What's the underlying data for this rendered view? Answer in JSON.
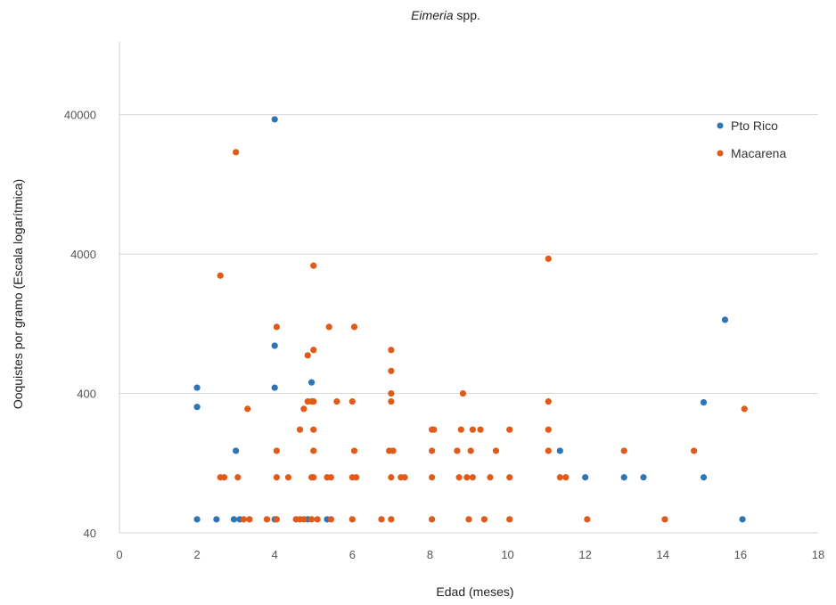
{
  "chart_data": {
    "type": "scatter",
    "title_italic": "Eimeria",
    "title_rest": " spp.",
    "xlabel": "Edad (meses)",
    "ylabel": "Ooquistes por gramo (Escala logarítmica)",
    "xlim": [
      0,
      18
    ],
    "x_ticks": [
      0,
      2,
      4,
      6,
      8,
      10,
      12,
      14,
      16,
      18
    ],
    "y_scale": "log",
    "ylim": [
      40,
      133000
    ],
    "y_ticks": [
      40,
      400,
      4000,
      40000
    ],
    "grid": "horizontal",
    "legend_position": "top-right",
    "series": [
      {
        "name": "Pto Rico",
        "color": "#2E75B6",
        "points": [
          [
            2,
            50
          ],
          [
            2.5,
            50
          ],
          [
            2.95,
            50
          ],
          [
            3.1,
            50
          ],
          [
            4,
            50
          ],
          [
            4.85,
            50
          ],
          [
            5.35,
            50
          ],
          [
            2,
            320
          ],
          [
            2,
            440
          ],
          [
            3,
            155
          ],
          [
            4,
            440
          ],
          [
            4,
            880
          ],
          [
            4.95,
            480
          ],
          [
            4,
            37000
          ],
          [
            11.35,
            155
          ],
          [
            12,
            100
          ],
          [
            13,
            100
          ],
          [
            13.5,
            100
          ],
          [
            15.05,
            100
          ],
          [
            15.05,
            345
          ],
          [
            15.6,
            1350
          ],
          [
            16.05,
            50
          ]
        ]
      },
      {
        "name": "Macarena",
        "color": "#E05A1A",
        "points": [
          [
            2.6,
            100
          ],
          [
            2.7,
            100
          ],
          [
            3.05,
            100
          ],
          [
            3.2,
            50
          ],
          [
            3.35,
            50
          ],
          [
            3.3,
            310
          ],
          [
            3,
            21500
          ],
          [
            2.6,
            2800
          ],
          [
            3.8,
            50
          ],
          [
            4.05,
            50
          ],
          [
            4.05,
            100
          ],
          [
            4.05,
            155
          ],
          [
            4.05,
            1200
          ],
          [
            4.35,
            100
          ],
          [
            4.55,
            50
          ],
          [
            4.65,
            50
          ],
          [
            4.75,
            50
          ],
          [
            4.95,
            50
          ],
          [
            4.65,
            220
          ],
          [
            4.75,
            310
          ],
          [
            4.85,
            750
          ],
          [
            4.85,
            350
          ],
          [
            4.95,
            350
          ],
          [
            4.95,
            100
          ],
          [
            5,
            100
          ],
          [
            5,
            155
          ],
          [
            5,
            220
          ],
          [
            5,
            350
          ],
          [
            5,
            820
          ],
          [
            5,
            3300
          ],
          [
            5.1,
            50
          ],
          [
            5.35,
            100
          ],
          [
            5.45,
            100
          ],
          [
            5.45,
            50
          ],
          [
            5.4,
            1200
          ],
          [
            5.6,
            350
          ],
          [
            6,
            50
          ],
          [
            6,
            100
          ],
          [
            6.1,
            100
          ],
          [
            6.05,
            155
          ],
          [
            6,
            350
          ],
          [
            6.05,
            1200
          ],
          [
            6.75,
            50
          ],
          [
            6.95,
            155
          ],
          [
            7.05,
            155
          ],
          [
            7,
            50
          ],
          [
            7,
            100
          ],
          [
            7,
            350
          ],
          [
            7,
            400
          ],
          [
            7,
            580
          ],
          [
            7,
            820
          ],
          [
            7.25,
            100
          ],
          [
            7.35,
            100
          ],
          [
            8.05,
            50
          ],
          [
            8.05,
            100
          ],
          [
            8.05,
            155
          ],
          [
            8.05,
            220
          ],
          [
            8.1,
            220
          ],
          [
            8.7,
            155
          ],
          [
            8.75,
            100
          ],
          [
            8.8,
            220
          ],
          [
            8.85,
            400
          ],
          [
            8.95,
            100
          ],
          [
            9,
            50
          ],
          [
            9.05,
            155
          ],
          [
            9.1,
            100
          ],
          [
            9.1,
            220
          ],
          [
            9.3,
            220
          ],
          [
            9.4,
            50
          ],
          [
            9.55,
            100
          ],
          [
            9.7,
            155
          ],
          [
            10.05,
            50
          ],
          [
            10.05,
            100
          ],
          [
            10.05,
            220
          ],
          [
            11.05,
            155
          ],
          [
            11.05,
            220
          ],
          [
            11.05,
            350
          ],
          [
            11.05,
            3700
          ],
          [
            11.35,
            100
          ],
          [
            11.5,
            100
          ],
          [
            12.05,
            50
          ],
          [
            13,
            155
          ],
          [
            14.05,
            50
          ],
          [
            14.8,
            155
          ],
          [
            16.1,
            310
          ]
        ]
      }
    ]
  }
}
